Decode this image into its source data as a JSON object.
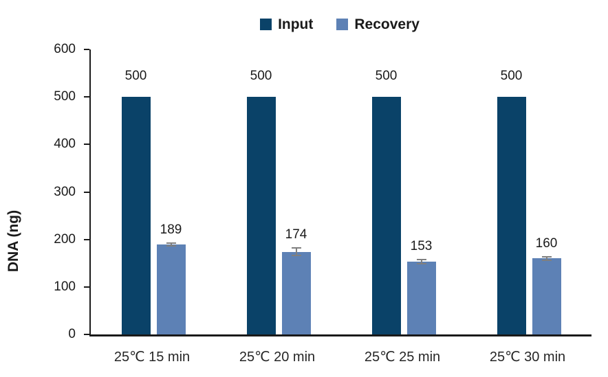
{
  "chart_data": {
    "type": "bar",
    "title": "",
    "xlabel": "",
    "ylabel": "DNA (ng)",
    "categories": [
      "25℃ 15 min",
      "25℃ 20 min",
      "25℃ 25 min",
      "25℃ 30 min"
    ],
    "series": [
      {
        "name": "Input",
        "color": "#0a4268",
        "values": [
          500,
          500,
          500,
          500
        ]
      },
      {
        "name": "Recovery",
        "color": "#5d81b5",
        "values": [
          189,
          174,
          153,
          160
        ],
        "errors": [
          3,
          8,
          4,
          4
        ],
        "error_color": "#7f7f7f"
      }
    ],
    "ylim": [
      0,
      600
    ],
    "yticks": [
      0,
      100,
      200,
      300,
      400,
      500,
      600
    ],
    "grid": false,
    "legend_position": "top-center",
    "data_labels": true,
    "axis_color": "#1a1a1a",
    "text_color": "#1a1a1a"
  }
}
